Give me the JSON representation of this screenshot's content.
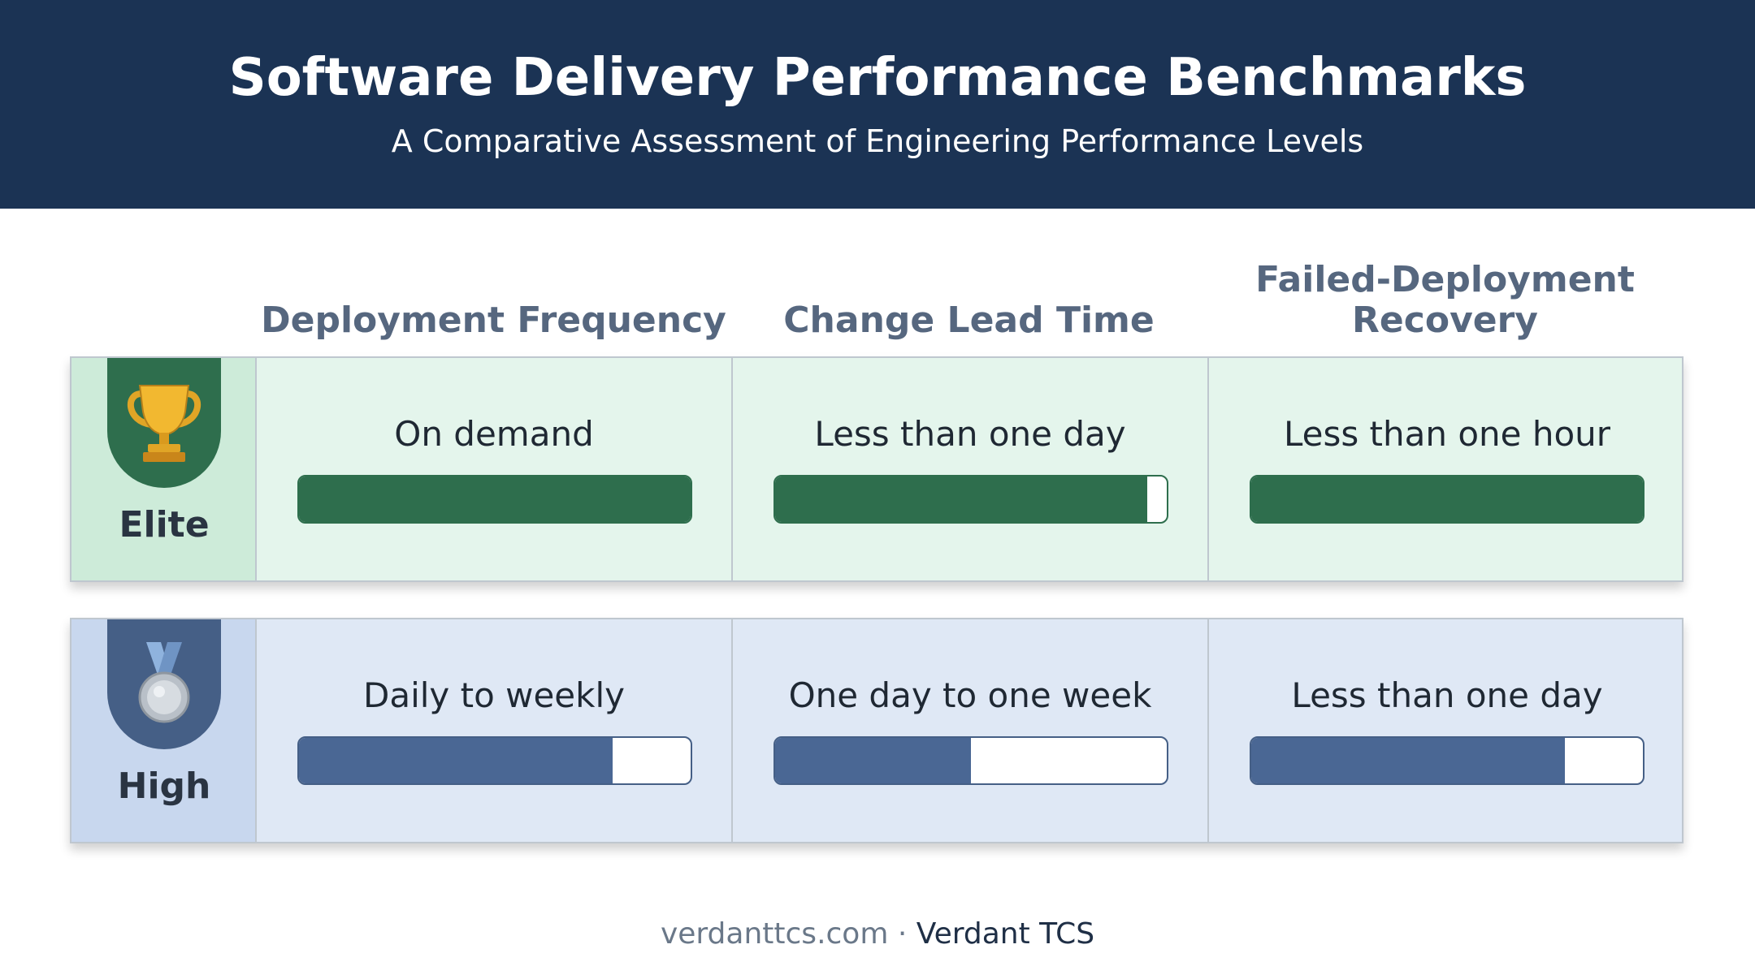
{
  "header": {
    "title": "Software Delivery Performance Benchmarks",
    "subtitle": "A Comparative Assessment of Engineering Performance Levels"
  },
  "columns": [
    {
      "label": "Deployment Frequency"
    },
    {
      "label": "Change Lead Time"
    },
    {
      "label": "Failed-Deployment Recovery"
    }
  ],
  "tiers": [
    {
      "label": "Elite",
      "icon": "trophy-icon",
      "color": "#2e6e4d",
      "cells": [
        {
          "text": "On demand",
          "level": 1.0
        },
        {
          "text": "Less than one day",
          "level": 0.95
        },
        {
          "text": "Less than one hour",
          "level": 1.0
        }
      ]
    },
    {
      "label": "High",
      "icon": "medal-icon",
      "color": "#4a6794",
      "cells": [
        {
          "text": "Daily to weekly",
          "level": 0.8
        },
        {
          "text": "One day to one week",
          "level": 0.5
        },
        {
          "text": "Less than one day",
          "level": 0.8
        }
      ]
    }
  ],
  "footer": {
    "site": "verdanttcs.com",
    "separator": " · ",
    "brand": "Verdant TCS"
  }
}
